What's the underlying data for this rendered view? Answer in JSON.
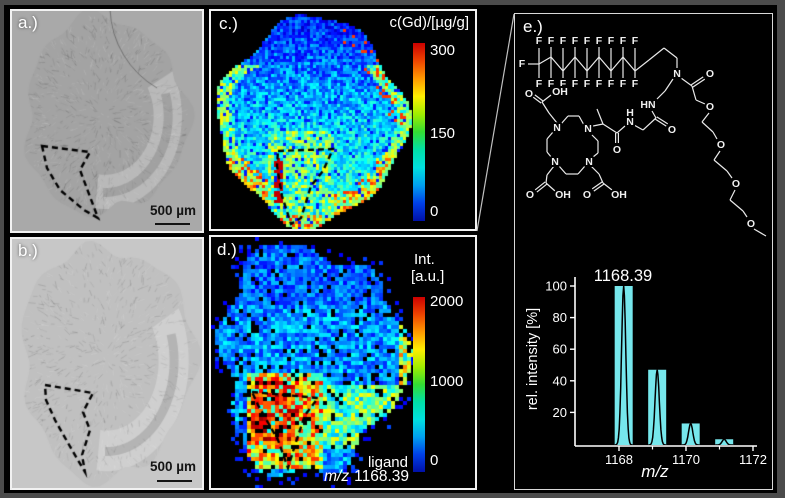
{
  "figure": {
    "frame_color": "#4b4b4b",
    "panel_border": "#f2f2f2",
    "colormap": [
      "#0010a8",
      "#0040e8",
      "#00a0f0",
      "#00e0e0",
      "#00e0a8",
      "#33dd33",
      "#a0ee00",
      "#ffee00",
      "#ff9900",
      "#ee4400",
      "#cc0000"
    ],
    "panel_a": {
      "label": "a.)",
      "scalebar_label": "500 µm"
    },
    "panel_b": {
      "label": "b.)",
      "scalebar_label": "500 µm"
    },
    "panel_c": {
      "label": "c.)",
      "colorbar_title": "c(Gd)/[µg/g]",
      "ticks": [
        "300",
        "150",
        "0"
      ]
    },
    "panel_d": {
      "label": "d.)",
      "colorbar_title_line1": "Int.",
      "colorbar_title_line2": "[a.u.]",
      "ticks": [
        "2000",
        "1000",
        "0"
      ],
      "annotation_line1": "ligand",
      "annotation_italic": "m/z",
      "annotation_value": "1168.39"
    },
    "panel_e": {
      "label": "e.)"
    }
  },
  "chart_data": {
    "type": "bar",
    "title": "1168.39",
    "xlabel": "m/z",
    "ylabel": "rel. intensity [%]",
    "x": [
      1168.39,
      1169.39,
      1170.39,
      1171.39
    ],
    "values": [
      100,
      47,
      13,
      3
    ],
    "xticks": [
      1168,
      1170,
      1172
    ],
    "xticks_minor": [
      1169,
      1171
    ],
    "yticks": [
      20,
      40,
      60,
      80,
      100
    ],
    "xlim": [
      1166.7,
      1172.3
    ],
    "ylim": [
      0,
      105
    ],
    "bar_color": "#76e7ec",
    "profile_color": "#000000",
    "axis_color": "#ffffff",
    "annotation": "1168.39"
  },
  "molecule": {
    "bonds": [
      [
        24,
        50,
        36,
        43
      ],
      [
        36,
        43,
        48,
        57
      ],
      [
        48,
        57,
        60,
        43
      ],
      [
        60,
        43,
        72,
        57
      ],
      [
        72,
        57,
        84,
        43
      ],
      [
        84,
        43,
        96,
        57
      ],
      [
        96,
        57,
        108,
        43
      ],
      [
        108,
        43,
        120,
        57
      ],
      [
        120,
        57,
        134,
        46
      ],
      [
        134,
        46,
        149,
        34
      ],
      [
        149,
        34,
        162,
        44
      ],
      [
        162,
        44,
        162,
        54
      ],
      [
        24,
        50,
        24,
        34
      ],
      [
        36,
        43,
        36,
        33
      ],
      [
        48,
        57,
        48,
        34
      ],
      [
        60,
        43,
        60,
        33
      ],
      [
        72,
        57,
        72,
        34
      ],
      [
        84,
        43,
        84,
        33
      ],
      [
        96,
        57,
        96,
        34
      ],
      [
        108,
        43,
        108,
        33
      ],
      [
        120,
        57,
        120,
        34
      ],
      [
        24,
        50,
        24,
        64
      ],
      [
        36,
        43,
        36,
        64
      ],
      [
        48,
        57,
        48,
        64
      ],
      [
        60,
        43,
        60,
        64
      ],
      [
        72,
        57,
        72,
        64
      ],
      [
        84,
        43,
        84,
        64
      ],
      [
        96,
        57,
        96,
        64
      ],
      [
        108,
        43,
        108,
        64
      ],
      [
        120,
        57,
        120,
        64
      ],
      [
        24,
        50,
        13,
        50
      ],
      [
        166,
        64,
        177,
        72
      ],
      [
        177,
        72,
        189,
        64,
        1
      ],
      [
        177,
        72,
        181,
        86
      ],
      [
        181,
        86,
        190,
        90
      ],
      [
        194,
        99,
        187,
        108
      ],
      [
        187,
        108,
        198,
        118
      ],
      [
        198,
        118,
        202,
        125
      ],
      [
        205,
        137,
        199,
        146
      ],
      [
        199,
        146,
        212,
        157
      ],
      [
        212,
        157,
        217,
        164
      ],
      [
        220,
        176,
        215,
        186
      ],
      [
        215,
        186,
        228,
        197
      ],
      [
        228,
        197,
        232,
        203
      ],
      [
        239,
        215,
        251,
        222
      ],
      [
        158,
        65,
        150,
        77
      ],
      [
        150,
        77,
        142,
        85
      ],
      [
        137,
        97,
        141,
        104
      ],
      [
        141,
        104,
        152,
        111,
        1
      ],
      [
        141,
        104,
        128,
        116
      ],
      [
        128,
        116,
        119,
        111
      ],
      [
        110,
        112,
        102,
        119
      ],
      [
        102,
        119,
        102,
        129,
        1
      ],
      [
        102,
        119,
        88,
        110
      ],
      [
        88,
        110,
        82,
        95
      ],
      [
        88,
        110,
        78,
        112
      ],
      [
        46,
        110,
        53,
        102
      ],
      [
        53,
        102,
        64,
        102
      ],
      [
        64,
        102,
        69,
        111
      ],
      [
        77,
        121,
        83,
        127
      ],
      [
        83,
        127,
        83,
        139
      ],
      [
        83,
        139,
        78,
        143
      ],
      [
        70,
        152,
        63,
        160
      ],
      [
        63,
        160,
        51,
        160
      ],
      [
        51,
        160,
        44,
        152
      ],
      [
        38,
        118,
        32,
        125
      ],
      [
        32,
        125,
        32,
        138
      ],
      [
        32,
        138,
        37,
        144
      ],
      [
        42,
        109,
        34,
        99
      ],
      [
        34,
        99,
        27,
        88
      ],
      [
        27,
        88,
        19,
        82,
        1
      ],
      [
        27,
        88,
        36,
        81
      ],
      [
        39,
        152,
        32,
        161
      ],
      [
        32,
        161,
        31,
        169
      ],
      [
        31,
        169,
        21,
        177,
        1
      ],
      [
        31,
        169,
        40,
        177
      ],
      [
        76,
        152,
        84,
        160
      ],
      [
        84,
        160,
        88,
        169
      ],
      [
        88,
        169,
        78,
        176,
        1
      ],
      [
        88,
        169,
        97,
        176
      ]
    ],
    "atoms": [
      [
        "F",
        24,
        27
      ],
      [
        "F",
        36,
        27
      ],
      [
        "F",
        48,
        27
      ],
      [
        "F",
        60,
        27
      ],
      [
        "F",
        72,
        27
      ],
      [
        "F",
        84,
        27
      ],
      [
        "F",
        96,
        27
      ],
      [
        "F",
        108,
        27
      ],
      [
        "F",
        120,
        27
      ],
      [
        "F",
        24,
        70
      ],
      [
        "F",
        36,
        70
      ],
      [
        "F",
        48,
        70
      ],
      [
        "F",
        60,
        70
      ],
      [
        "F",
        72,
        70
      ],
      [
        "F",
        84,
        70
      ],
      [
        "F",
        96,
        70
      ],
      [
        "F",
        108,
        70
      ],
      [
        "F",
        120,
        70
      ],
      [
        "F",
        7,
        50
      ],
      [
        "N",
        162,
        60
      ],
      [
        "O",
        195,
        60
      ],
      [
        "O",
        195,
        93
      ],
      [
        "O",
        206,
        131
      ],
      [
        "O",
        221,
        170
      ],
      [
        "O",
        236,
        210
      ],
      [
        "HN",
        133,
        91
      ],
      [
        "O",
        157,
        116
      ],
      [
        "N",
        115,
        108
      ],
      [
        "H",
        115,
        99
      ],
      [
        "O",
        102,
        136
      ],
      [
        "N",
        42,
        114
      ],
      [
        "N",
        73,
        115
      ],
      [
        "N",
        40,
        148
      ],
      [
        "N",
        74,
        148
      ],
      [
        "O",
        14,
        80
      ],
      [
        "OH",
        45,
        78
      ],
      [
        "O",
        15,
        181
      ],
      [
        "OH",
        48,
        181
      ],
      [
        "O",
        72,
        181
      ],
      [
        "OH",
        104,
        181
      ]
    ]
  }
}
